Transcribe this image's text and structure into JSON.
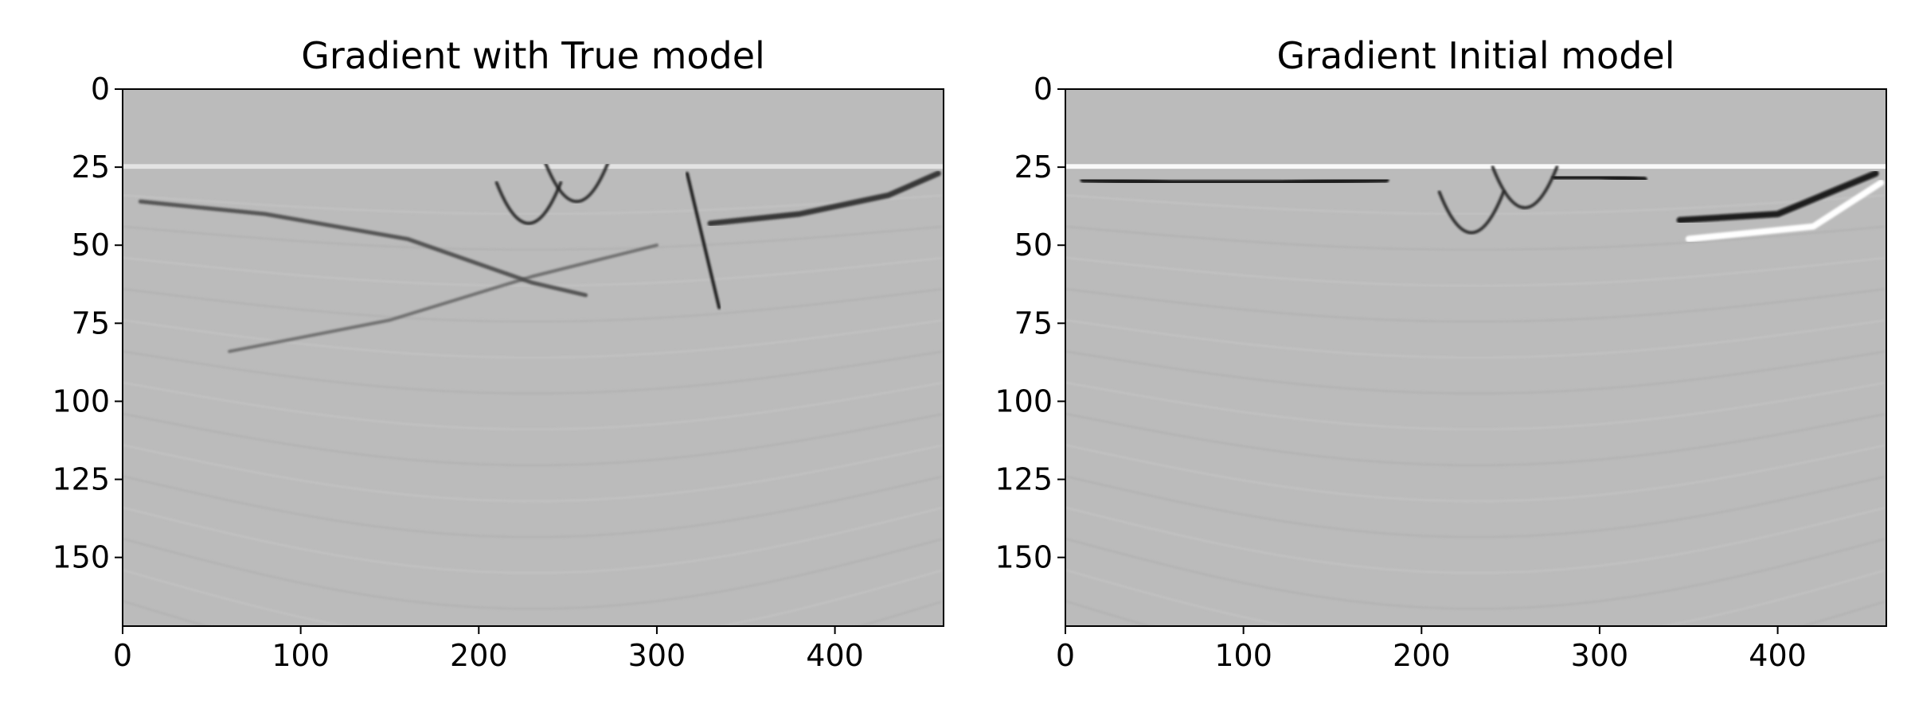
{
  "chart_data": [
    {
      "type": "heatmap",
      "title": "Gradient with True model",
      "xlabel": "",
      "ylabel": "",
      "xlim": [
        0,
        461
      ],
      "ylim": [
        172,
        0
      ],
      "x_ticks": [
        0,
        100,
        200,
        300,
        400
      ],
      "y_ticks": [
        0,
        25,
        50,
        75,
        100,
        125,
        150
      ],
      "colormap": "gray",
      "background_value_color": "#bbbbbb",
      "water_layer_depth": 24,
      "features": [
        {
          "kind": "dipping-reflector",
          "x": [
            10,
            80,
            160,
            230,
            260
          ],
          "y": [
            36,
            40,
            48,
            62,
            66
          ]
        },
        {
          "kind": "curved-reflector",
          "x": [
            60,
            150,
            230,
            300
          ],
          "y": [
            84,
            74,
            60,
            50
          ]
        },
        {
          "kind": "diffraction-apex",
          "x": [
            228
          ],
          "y": [
            52
          ]
        },
        {
          "kind": "diffraction-apex",
          "x": [
            255
          ],
          "y": [
            45
          ]
        },
        {
          "kind": "steep-fault",
          "x": [
            317,
            335
          ],
          "y": [
            27,
            70
          ]
        },
        {
          "kind": "shallow-reflector",
          "x": [
            330,
            380,
            430,
            458
          ],
          "y": [
            43,
            40,
            34,
            27
          ]
        }
      ]
    },
    {
      "type": "heatmap",
      "title": "Gradient Initial model",
      "xlabel": "",
      "ylabel": "",
      "xlim": [
        0,
        461
      ],
      "ylim": [
        172,
        0
      ],
      "x_ticks": [
        0,
        100,
        200,
        300,
        400
      ],
      "y_ticks": [
        0,
        25,
        50,
        75,
        100,
        125,
        150
      ],
      "colormap": "gray",
      "background_value_color": "#bbbbbb",
      "water_layer_depth": 24,
      "features": [
        {
          "kind": "surface-reflector",
          "x": [
            0,
            100,
            200,
            300,
            400,
            461
          ],
          "y": [
            25,
            25,
            25,
            25,
            25,
            25
          ]
        },
        {
          "kind": "dark-band",
          "x": [
            10,
            60,
            120,
            180
          ],
          "y": [
            29,
            30,
            30,
            29
          ]
        },
        {
          "kind": "dark-band",
          "x": [
            275,
            300,
            325
          ],
          "y": [
            28,
            28,
            29
          ]
        },
        {
          "kind": "dark-band",
          "x": [
            345,
            400,
            455
          ],
          "y": [
            42,
            40,
            27
          ]
        },
        {
          "kind": "diffraction-apex",
          "x": [
            228
          ],
          "y": [
            55
          ]
        },
        {
          "kind": "diffraction-apex",
          "x": [
            258
          ],
          "y": [
            47
          ]
        },
        {
          "kind": "bright-band",
          "x": [
            350,
            420,
            458
          ],
          "y": [
            48,
            44,
            30
          ]
        }
      ]
    }
  ]
}
